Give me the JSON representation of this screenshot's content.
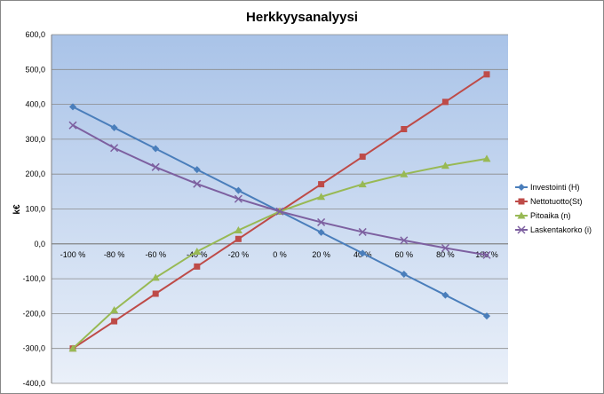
{
  "chart_data": {
    "type": "line",
    "title": "Herkkyysanalyysi",
    "xlabel": "",
    "ylabel": "k€",
    "ylim": [
      -400,
      600
    ],
    "y_ticks": [
      "600,0",
      "500,0",
      "400,0",
      "300,0",
      "200,0",
      "100,0",
      "0,0",
      "-100,0",
      "-200,0",
      "-300,0",
      "-400,0"
    ],
    "y_tick_values": [
      600,
      500,
      400,
      300,
      200,
      100,
      0,
      -100,
      -200,
      -300,
      -400
    ],
    "categories": [
      "-100 %",
      "-80 %",
      "-60 %",
      "-40 %",
      "-20 %",
      "0 %",
      "20 %",
      "40 %",
      "60 %",
      "80 %",
      "100 %"
    ],
    "grid": true,
    "legend_position": "right",
    "series": [
      {
        "name": "Investointi (H)",
        "color": "#4a7ebb",
        "marker": "diamond",
        "values": [
          393,
          333,
          273,
          213,
          153,
          93,
          33,
          -27,
          -87,
          -147,
          -207
        ]
      },
      {
        "name": "Nettotuotto(St)",
        "color": "#be4b48",
        "marker": "square",
        "values": [
          -300,
          -222,
          -143,
          -65,
          14,
          93,
          171,
          250,
          329,
          407,
          486
        ]
      },
      {
        "name": "Pitoaika (n)",
        "color": "#98b954",
        "marker": "triangle",
        "values": [
          -300,
          -190,
          -97,
          -22,
          39,
          93,
          135,
          171,
          200,
          224,
          244
        ]
      },
      {
        "name": "Laskentakorko (i)",
        "color": "#7d60a0",
        "marker": "x",
        "values": [
          340,
          275,
          220,
          172,
          129,
          93,
          62,
          34,
          10,
          -12,
          -32
        ]
      }
    ]
  }
}
